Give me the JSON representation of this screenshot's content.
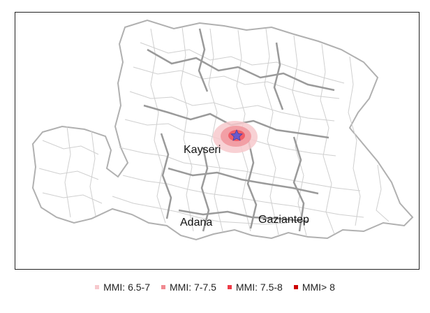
{
  "map": {
    "cities": [
      {
        "name": "Kayseri"
      },
      {
        "name": "Adana"
      },
      {
        "name": "Gaziantep"
      }
    ],
    "epicenter_marker": "star-icon"
  },
  "legend": {
    "items": [
      {
        "label": "MMI: 6.5-7",
        "color": "#f7c9cd"
      },
      {
        "label": "MMI: 7-7.5",
        "color": "#f08a91"
      },
      {
        "label": "MMI: 7.5-8",
        "color": "#ee3b47"
      },
      {
        "label": "MMI> 8",
        "color": "#cc0000"
      }
    ]
  },
  "colors": {
    "district_border": "#c8c8c8",
    "province_border": "#9a9a9a",
    "outline": "#aaaaaa",
    "epicenter": "#6a5acd"
  }
}
